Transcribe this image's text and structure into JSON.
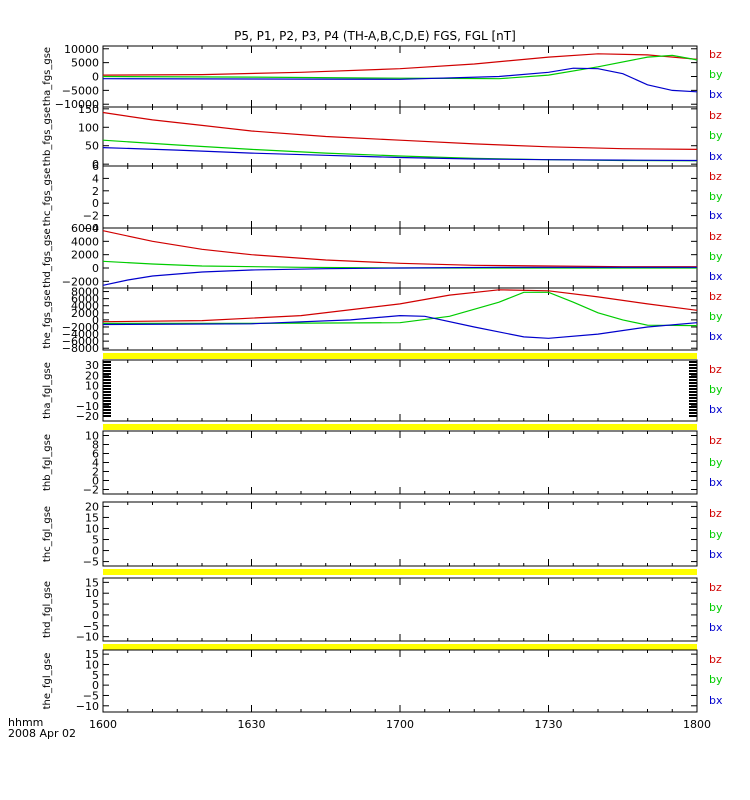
{
  "title": "P5, P1, P2, P3, P4 (TH-A,B,C,D,E) FGS, FGL [nT]",
  "footer": {
    "time_label": "hhmm",
    "date_label": "2008 Apr 02"
  },
  "colors": {
    "bz": "#d00000",
    "by": "#00cc00",
    "bx": "#0000cc",
    "flag": "#ffff00",
    "axis": "#000000"
  },
  "chart_data": {
    "type": "line",
    "x_ticks": [
      "1600",
      "1630",
      "1700",
      "1730",
      "1800"
    ],
    "x_range_minutes": [
      0,
      120
    ],
    "legend": [
      "bz",
      "by",
      "bx"
    ],
    "panels": [
      {
        "ylabel": "tha_fgs_gse",
        "ylim": [
          -11000,
          11000
        ],
        "yticks": [
          10000,
          5000,
          0,
          -5000,
          -10000
        ],
        "ytick_labels": [
          "10000",
          "5000",
          "0",
          "−5000",
          "−10000"
        ],
        "flag_bottom": false,
        "series": [
          {
            "name": "bz",
            "points": [
              [
                0,
                500
              ],
              [
                20,
                700
              ],
              [
                40,
                1500
              ],
              [
                60,
                2800
              ],
              [
                75,
                4500
              ],
              [
                90,
                7000
              ],
              [
                100,
                8200
              ],
              [
                110,
                7800
              ],
              [
                120,
                6200
              ]
            ]
          },
          {
            "name": "by",
            "points": [
              [
                0,
                0
              ],
              [
                30,
                -200
              ],
              [
                60,
                -600
              ],
              [
                70,
                -700
              ],
              [
                80,
                -800
              ],
              [
                90,
                500
              ],
              [
                100,
                3500
              ],
              [
                110,
                7000
              ],
              [
                115,
                7600
              ],
              [
                120,
                6000
              ]
            ]
          },
          {
            "name": "bx",
            "points": [
              [
                0,
                -800
              ],
              [
                30,
                -900
              ],
              [
                60,
                -1000
              ],
              [
                80,
                0
              ],
              [
                90,
                1500
              ],
              [
                95,
                3000
              ],
              [
                100,
                2800
              ],
              [
                105,
                1000
              ],
              [
                110,
                -3000
              ],
              [
                115,
                -5000
              ],
              [
                120,
                -5500
              ]
            ]
          }
        ]
      },
      {
        "ylabel": "thb_fgs_gse",
        "ylim": [
          -5,
          155
        ],
        "yticks": [
          150,
          100,
          50,
          0
        ],
        "ytick_labels": [
          "150",
          "100",
          "50",
          "0"
        ],
        "flag_bottom": false,
        "series": [
          {
            "name": "bz",
            "points": [
              [
                0,
                140
              ],
              [
                10,
                120
              ],
              [
                20,
                105
              ],
              [
                30,
                90
              ],
              [
                45,
                75
              ],
              [
                60,
                65
              ],
              [
                75,
                55
              ],
              [
                90,
                47
              ],
              [
                105,
                42
              ],
              [
                120,
                40
              ]
            ]
          },
          {
            "name": "by",
            "points": [
              [
                0,
                65
              ],
              [
                15,
                52
              ],
              [
                30,
                40
              ],
              [
                45,
                30
              ],
              [
                60,
                22
              ],
              [
                75,
                16
              ],
              [
                90,
                12
              ],
              [
                105,
                10
              ],
              [
                120,
                9
              ]
            ]
          },
          {
            "name": "bx",
            "points": [
              [
                0,
                45
              ],
              [
                15,
                38
              ],
              [
                30,
                30
              ],
              [
                45,
                24
              ],
              [
                60,
                18
              ],
              [
                75,
                14
              ],
              [
                90,
                12
              ],
              [
                105,
                11
              ],
              [
                120,
                10
              ]
            ]
          }
        ]
      },
      {
        "ylabel": "thc_fgs_gse",
        "ylim": [
          -4,
          6
        ],
        "yticks": [
          6,
          4,
          2,
          0,
          -2,
          -4
        ],
        "ytick_labels": [
          "6",
          "4",
          "2",
          "0",
          "−2",
          "−4"
        ],
        "flag_bottom": false,
        "series": []
      },
      {
        "ylabel": "thd_fgs_gse",
        "ylim": [
          -3000,
          6000
        ],
        "yticks": [
          6000,
          4000,
          2000,
          0,
          -2000
        ],
        "ytick_labels": [
          "6000",
          "4000",
          "2000",
          "0",
          "−2000"
        ],
        "flag_bottom": false,
        "series": [
          {
            "name": "bz",
            "points": [
              [
                0,
                5600
              ],
              [
                10,
                4000
              ],
              [
                20,
                2800
              ],
              [
                30,
                2000
              ],
              [
                45,
                1200
              ],
              [
                60,
                700
              ],
              [
                75,
                400
              ],
              [
                90,
                300
              ],
              [
                105,
                200
              ],
              [
                120,
                200
              ]
            ]
          },
          {
            "name": "by",
            "points": [
              [
                0,
                1000
              ],
              [
                10,
                600
              ],
              [
                20,
                300
              ],
              [
                40,
                100
              ],
              [
                60,
                0
              ],
              [
                90,
                0
              ],
              [
                120,
                0
              ]
            ]
          },
          {
            "name": "bx",
            "points": [
              [
                0,
                -2600
              ],
              [
                5,
                -1800
              ],
              [
                10,
                -1200
              ],
              [
                20,
                -600
              ],
              [
                30,
                -300
              ],
              [
                45,
                -100
              ],
              [
                60,
                0
              ],
              [
                80,
                100
              ],
              [
                100,
                100
              ],
              [
                120,
                100
              ]
            ]
          }
        ]
      },
      {
        "ylabel": "the_fgs_gse",
        "ylim": [
          -8500,
          9000
        ],
        "yticks": [
          8000,
          6000,
          4000,
          2000,
          0,
          -2000,
          -4000,
          -6000,
          -8000
        ],
        "ytick_labels": [
          "8000",
          "6000",
          "4000",
          "2000",
          "0",
          "−2000",
          "−4000",
          "−6000",
          "−8000"
        ],
        "flag_bottom": true,
        "series": [
          {
            "name": "bz",
            "points": [
              [
                0,
                -500
              ],
              [
                20,
                -200
              ],
              [
                40,
                1200
              ],
              [
                60,
                4500
              ],
              [
                70,
                7000
              ],
              [
                80,
                8500
              ],
              [
                90,
                8200
              ],
              [
                100,
                6500
              ],
              [
                110,
                4500
              ],
              [
                120,
                2700
              ]
            ]
          },
          {
            "name": "by",
            "points": [
              [
                0,
                -1000
              ],
              [
                30,
                -1000
              ],
              [
                60,
                -800
              ],
              [
                70,
                1000
              ],
              [
                80,
                5000
              ],
              [
                85,
                7800
              ],
              [
                90,
                7800
              ],
              [
                95,
                5000
              ],
              [
                100,
                2000
              ],
              [
                105,
                0
              ],
              [
                110,
                -1500
              ],
              [
                120,
                -1600
              ]
            ]
          },
          {
            "name": "bx",
            "points": [
              [
                0,
                -1300
              ],
              [
                30,
                -1100
              ],
              [
                50,
                0
              ],
              [
                60,
                1200
              ],
              [
                65,
                1000
              ],
              [
                75,
                -2000
              ],
              [
                85,
                -4800
              ],
              [
                90,
                -5200
              ],
              [
                100,
                -4000
              ],
              [
                110,
                -2000
              ],
              [
                120,
                -800
              ]
            ]
          }
        ]
      },
      {
        "ylabel": "tha_fgl_gse",
        "ylim": [
          -25,
          35
        ],
        "yticks": [
          30,
          20,
          10,
          0,
          -10,
          -20
        ],
        "ytick_labels": [
          "30",
          "20",
          "10",
          "0",
          "−10",
          "−20"
        ],
        "flag_bottom": true,
        "side_marks": true,
        "series": []
      },
      {
        "ylabel": "thb_fgl_gse",
        "ylim": [
          -3,
          11
        ],
        "yticks": [
          10,
          8,
          6,
          4,
          2,
          0,
          -2
        ],
        "ytick_labels": [
          "10",
          "8",
          "6",
          "4",
          "2",
          "0",
          "−2"
        ],
        "flag_bottom": false,
        "series": []
      },
      {
        "ylabel": "thc_fgl_gse",
        "ylim": [
          -7,
          22
        ],
        "yticks": [
          20,
          15,
          10,
          5,
          0,
          -5
        ],
        "ytick_labels": [
          "20",
          "15",
          "10",
          "5",
          "0",
          "−5"
        ],
        "flag_bottom": true,
        "series": []
      },
      {
        "ylabel": "thd_fgl_gse",
        "ylim": [
          -12,
          17
        ],
        "yticks": [
          15,
          10,
          5,
          0,
          -5,
          -10
        ],
        "ytick_labels": [
          "15",
          "10",
          "5",
          "0",
          "−5",
          "−10"
        ],
        "flag_bottom": true,
        "series": []
      },
      {
        "ylabel": "the_fgl_gse",
        "ylim": [
          -13,
          17
        ],
        "yticks": [
          15,
          10,
          5,
          0,
          -5,
          -10
        ],
        "ytick_labels": [
          "15",
          "10",
          "5",
          "0",
          "−5",
          "−10"
        ],
        "flag_bottom": false,
        "series": []
      }
    ]
  }
}
